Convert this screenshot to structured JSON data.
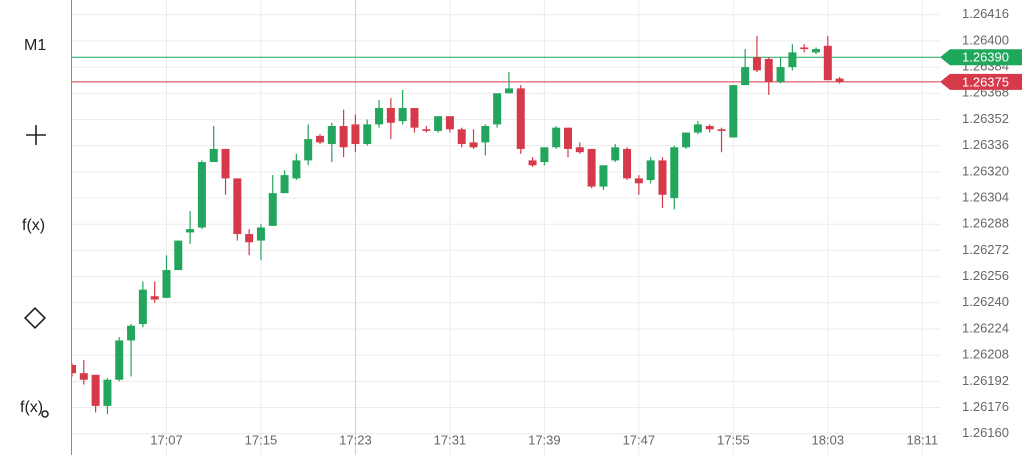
{
  "toolbar": {
    "items": [
      "M1",
      "f(x)",
      "f(x)"
    ]
  },
  "chart_data": {
    "type": "candlestick",
    "x": [
      1019,
      1020,
      1021,
      1022,
      1023,
      1024,
      1025,
      1026,
      1027,
      1028,
      1029,
      1030,
      1031,
      1032,
      1033,
      1034,
      1035,
      1036,
      1037,
      1038,
      1039,
      1040,
      1041,
      1042,
      1043,
      1044,
      1045,
      1046,
      1047,
      1048,
      1049,
      1050,
      1051,
      1052,
      1053,
      1054,
      1055,
      1056,
      1057,
      1058,
      1059,
      1060,
      1061,
      1062,
      1063,
      1064,
      1065,
      1066,
      1067,
      1068,
      1069,
      1070,
      1071,
      1072,
      1073,
      1074,
      1075,
      1076,
      1077,
      1078,
      1079,
      1080,
      1081,
      1082,
      1083,
      1084
    ],
    "open": [
      1.26202,
      1.26197,
      1.26196,
      1.26177,
      1.26193,
      1.26217,
      1.26227,
      1.26244,
      1.26243,
      1.2626,
      1.26283,
      1.26286,
      1.26326,
      1.26334,
      1.26316,
      1.26282,
      1.26278,
      1.26287,
      1.26307,
      1.26316,
      1.26327,
      1.26342,
      1.26337,
      1.26348,
      1.26349,
      1.26337,
      1.26349,
      1.26359,
      1.26351,
      1.26359,
      1.26346,
      1.26345,
      1.26354,
      1.26346,
      1.26338,
      1.26338,
      1.26349,
      1.26368,
      1.26371,
      1.26327,
      1.26326,
      1.26335,
      1.26347,
      1.26335,
      1.26334,
      1.26311,
      1.26327,
      1.26334,
      1.26316,
      1.26315,
      1.26327,
      1.26304,
      1.26335,
      1.26344,
      1.26348,
      1.26346,
      1.26341,
      1.26373,
      1.2639,
      1.26389,
      1.26375,
      1.26384,
      1.26396,
      1.26393,
      1.26397,
      1.26377
    ],
    "high": [
      1.26203,
      1.26205,
      1.26196,
      1.26194,
      1.26219,
      1.26227,
      1.26253,
      1.26253,
      1.26269,
      1.26278,
      1.26296,
      1.26327,
      1.26348,
      1.26334,
      1.26316,
      1.26285,
      1.26288,
      1.26318,
      1.26321,
      1.26331,
      1.26349,
      1.26343,
      1.2635,
      1.26358,
      1.26355,
      1.26352,
      1.26364,
      1.26365,
      1.2637,
      1.26359,
      1.26348,
      1.26354,
      1.26354,
      1.26347,
      1.26346,
      1.26349,
      1.26368,
      1.26381,
      1.26373,
      1.26329,
      1.26335,
      1.26348,
      1.26347,
      1.26338,
      1.26334,
      1.26324,
      1.26337,
      1.26335,
      1.26318,
      1.26329,
      1.26329,
      1.26336,
      1.26344,
      1.26351,
      1.26349,
      1.26347,
      1.26373,
      1.26395,
      1.26403,
      1.2639,
      1.2639,
      1.26398,
      1.26398,
      1.26396,
      1.26403,
      1.26378
    ],
    "low": [
      1.26195,
      1.2619,
      1.26173,
      1.26172,
      1.26192,
      1.26195,
      1.26225,
      1.2624,
      1.26243,
      1.2626,
      1.26276,
      1.26285,
      1.26326,
      1.26306,
      1.26278,
      1.26269,
      1.26266,
      1.26287,
      1.26307,
      1.26315,
      1.26324,
      1.26337,
      1.26326,
      1.26329,
      1.26332,
      1.26336,
      1.26347,
      1.2634,
      1.26349,
      1.26344,
      1.26344,
      1.26344,
      1.26344,
      1.26335,
      1.26334,
      1.2633,
      1.26347,
      1.26368,
      1.26331,
      1.26323,
      1.26324,
      1.26334,
      1.26329,
      1.26331,
      1.2631,
      1.26309,
      1.26326,
      1.26315,
      1.26306,
      1.26313,
      1.26298,
      1.26297,
      1.26334,
      1.26343,
      1.26344,
      1.26332,
      1.26341,
      1.26373,
      1.26381,
      1.26367,
      1.26374,
      1.26382,
      1.26393,
      1.26392,
      1.26376,
      1.26374
    ],
    "close": [
      1.26197,
      1.26193,
      1.26177,
      1.26193,
      1.26217,
      1.26226,
      1.26248,
      1.26242,
      1.2626,
      1.26278,
      1.26285,
      1.26326,
      1.26334,
      1.26316,
      1.26282,
      1.26277,
      1.26286,
      1.26307,
      1.26318,
      1.26327,
      1.2634,
      1.26338,
      1.26348,
      1.26335,
      1.26337,
      1.26349,
      1.26359,
      1.2635,
      1.26359,
      1.26347,
      1.26345,
      1.26354,
      1.26346,
      1.26337,
      1.26335,
      1.26348,
      1.26368,
      1.26371,
      1.26334,
      1.26324,
      1.26335,
      1.26347,
      1.26334,
      1.26332,
      1.26311,
      1.26324,
      1.26335,
      1.26316,
      1.26313,
      1.26327,
      1.26306,
      1.26335,
      1.26344,
      1.26349,
      1.26346,
      1.26345,
      1.26373,
      1.26384,
      1.26382,
      1.26375,
      1.26384,
      1.26393,
      1.26395,
      1.26395,
      1.26376,
      1.26375
    ],
    "up_color": "#22a55c",
    "down_color": "#d63a4a",
    "xlim": [
      1019,
      1092.5
    ],
    "xticks": [
      {
        "value": 1027,
        "label": "17:07"
      },
      {
        "value": 1035,
        "label": "17:15"
      },
      {
        "value": 1043,
        "label": "17:23"
      },
      {
        "value": 1051,
        "label": "17:31"
      },
      {
        "value": 1059,
        "label": "17:39"
      },
      {
        "value": 1067,
        "label": "17:47"
      },
      {
        "value": 1075,
        "label": "17:55"
      },
      {
        "value": 1083,
        "label": "18:03"
      },
      {
        "value": 1091,
        "label": "18:11"
      }
    ],
    "ylim": [
      1.26147,
      1.26425
    ],
    "yticks": [
      1.26416,
      {
        "value": 1.264,
        "label": "1.26400"
      },
      1.26384,
      1.26368,
      1.26352,
      1.26336,
      {
        "value": 1.2632,
        "label": "1.26320"
      },
      1.26304,
      1.26288,
      1.26272,
      1.26256,
      {
        "value": 1.2624,
        "label": "1.26240"
      },
      1.26224,
      1.26208,
      1.26192,
      1.26176,
      {
        "value": 1.2616,
        "label": "1.26160"
      }
    ],
    "grid": true,
    "price_lines": [
      {
        "value": 1.2639,
        "label": "1.26390",
        "color": "#1fa85c"
      },
      {
        "value": 1.26375,
        "label": "1.26375",
        "color": "#d63a4a"
      }
    ]
  }
}
